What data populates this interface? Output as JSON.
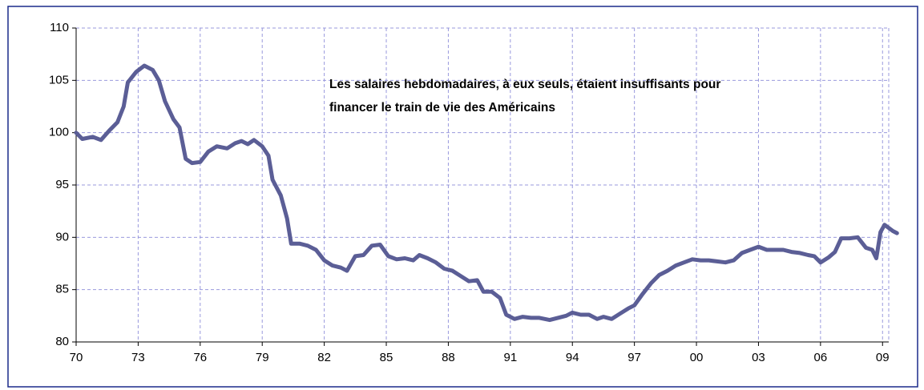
{
  "chart_data": {
    "type": "line",
    "annotation": [
      "Les salaires hebdomadaires, à eux seuls, étaient insuffisants pour",
      "financer le train de vie des Américains"
    ],
    "x": [
      1970.0,
      1970.3,
      1970.8,
      1971.2,
      1971.6,
      1972.0,
      1972.3,
      1972.5,
      1972.9,
      1973.3,
      1973.7,
      1974.0,
      1974.3,
      1974.7,
      1975.0,
      1975.3,
      1975.6,
      1976.0,
      1976.4,
      1976.8,
      1977.3,
      1977.7,
      1978.0,
      1978.3,
      1978.6,
      1979.0,
      1979.3,
      1979.5,
      1979.9,
      1980.2,
      1980.4,
      1980.8,
      1981.2,
      1981.6,
      1982.0,
      1982.4,
      1982.8,
      1983.1,
      1983.5,
      1983.9,
      1984.3,
      1984.7,
      1985.1,
      1985.5,
      1985.9,
      1986.3,
      1986.6,
      1987.0,
      1987.4,
      1987.8,
      1988.2,
      1988.6,
      1989.0,
      1989.4,
      1989.7,
      1990.1,
      1990.5,
      1990.8,
      1991.2,
      1991.6,
      1992.0,
      1992.4,
      1992.9,
      1993.3,
      1993.7,
      1994.0,
      1994.4,
      1994.8,
      1995.2,
      1995.5,
      1995.9,
      1996.3,
      1996.7,
      1997.0,
      1997.4,
      1997.8,
      1998.2,
      1998.6,
      1999.0,
      1999.4,
      1999.8,
      2000.2,
      2000.6,
      2001.0,
      2001.4,
      2001.8,
      2002.2,
      2002.6,
      2003.0,
      2003.4,
      2003.8,
      2004.2,
      2004.6,
      2005.0,
      2005.4,
      2005.7,
      2006.0,
      2006.4,
      2006.7,
      2007.0,
      2007.4,
      2007.8,
      2008.2,
      2008.5,
      2008.7,
      2008.9,
      2009.1,
      2009.5,
      2009.7
    ],
    "series": [
      {
        "color": "#5b5e96",
        "values": [
          100,
          99.4,
          99.6,
          99.3,
          100.2,
          101,
          102.5,
          104.8,
          105.8,
          106.4,
          106,
          105,
          103,
          101.3,
          100.5,
          97.5,
          97.1,
          97.2,
          98.2,
          98.7,
          98.5,
          99,
          99.2,
          98.9,
          99.3,
          98.7,
          97.8,
          95.5,
          94,
          91.8,
          89.4,
          89.4,
          89.2,
          88.8,
          87.8,
          87.3,
          87.1,
          86.8,
          88.2,
          88.3,
          89.2,
          89.3,
          88.2,
          87.9,
          88,
          87.8,
          88.3,
          88,
          87.6,
          87,
          86.8,
          86.3,
          85.8,
          85.9,
          84.8,
          84.8,
          84.2,
          82.6,
          82.2,
          82.4,
          82.3,
          82.3,
          82.1,
          82.3,
          82.5,
          82.8,
          82.6,
          82.6,
          82.2,
          82.4,
          82.2,
          82.7,
          83.2,
          83.5,
          84.6,
          85.6,
          86.4,
          86.8,
          87.3,
          87.6,
          87.9,
          87.8,
          87.8,
          87.7,
          87.6,
          87.8,
          88.5,
          88.8,
          89.1,
          88.8,
          88.8,
          88.8,
          88.6,
          88.5,
          88.3,
          88.2,
          87.6,
          88.1,
          88.6,
          89.9,
          89.9,
          90,
          89,
          88.8,
          88,
          90.5,
          91.2,
          90.6,
          90.4
        ]
      }
    ],
    "xlim": [
      1970,
      2009.3
    ],
    "xticks": [
      {
        "value": 1970,
        "label": "70"
      },
      {
        "value": 1973,
        "label": "73"
      },
      {
        "value": 1976,
        "label": "76"
      },
      {
        "value": 1979,
        "label": "79"
      },
      {
        "value": 1982,
        "label": "82"
      },
      {
        "value": 1985,
        "label": "85"
      },
      {
        "value": 1988,
        "label": "88"
      },
      {
        "value": 1991,
        "label": "91"
      },
      {
        "value": 1994,
        "label": "94"
      },
      {
        "value": 1997,
        "label": "97"
      },
      {
        "value": 2000,
        "label": "00"
      },
      {
        "value": 2003,
        "label": "03"
      },
      {
        "value": 2006,
        "label": "06"
      },
      {
        "value": 2009,
        "label": "09"
      }
    ],
    "ylim": [
      80,
      110
    ],
    "yticks": [
      80,
      85,
      90,
      95,
      100,
      105,
      110
    ],
    "grid": true
  }
}
